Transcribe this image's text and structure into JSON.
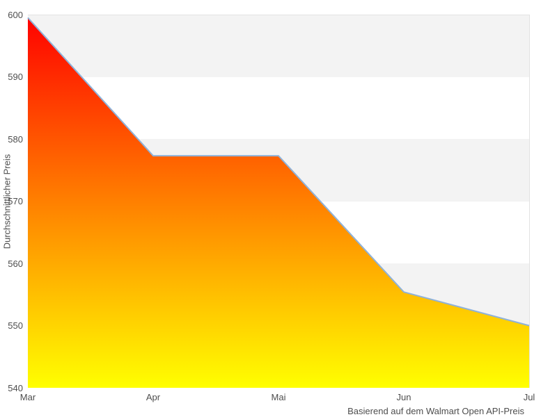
{
  "chart_data": {
    "type": "area",
    "categories": [
      "Mar",
      "Apr",
      "Mai",
      "Jun",
      "Jul"
    ],
    "values": [
      599.5,
      577.3,
      577.3,
      555.4,
      550.0
    ],
    "title": "",
    "xlabel": "",
    "ylabel": "Durchschnittlicher Preis",
    "caption": "Basierend auf dem Walmart Open API-Preis",
    "ylim": [
      540,
      600
    ],
    "yticks": [
      600,
      590,
      580,
      570,
      560,
      550,
      540
    ],
    "grid": "alternating-horizontal-bands",
    "legend_position": "none",
    "colors": {
      "gradient_top": "#ff0000",
      "gradient_bottom": "#ffff00",
      "line": "#8fb2d9",
      "band_gray": "#f3f3f3",
      "band_white": "#ffffff",
      "plot_border": "#e2e2e2",
      "tick_text": "#4d4d4d"
    }
  }
}
